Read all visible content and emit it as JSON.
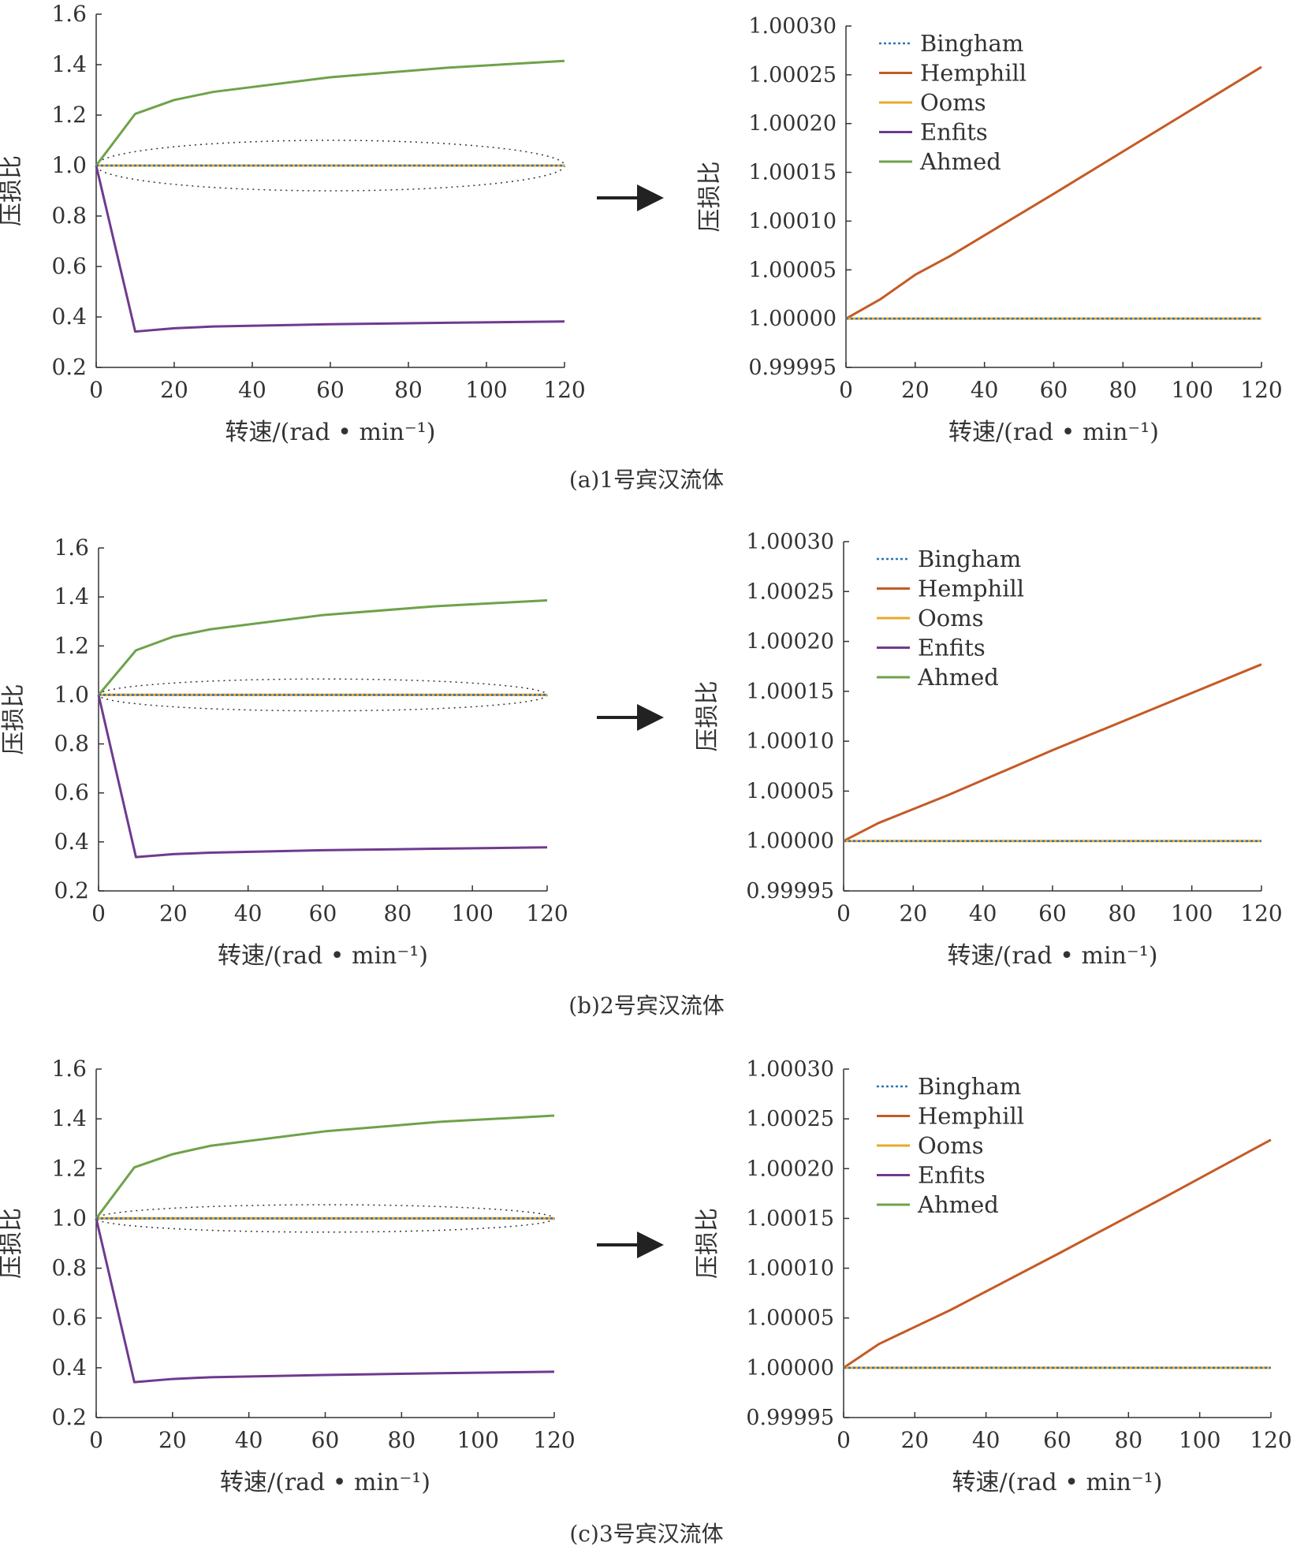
{
  "colors": {
    "Bingham": "#2e75b6",
    "Hemphill": "#c55a24",
    "Ooms": "#e8a92a",
    "Enfits": "#6f3a8f",
    "Ahmed": "#6fa24a",
    "axis": "#333333",
    "ellipse": "#333333"
  },
  "legend": [
    "Bingham",
    "Hemphill",
    "Ooms",
    "Enfits",
    "Ahmed"
  ],
  "arrow": "→",
  "chart_data": [
    {
      "id": "a-left",
      "type": "line",
      "xlabel": "转速/(rad • min⁻¹)",
      "ylabel": "压损比",
      "xticks": [
        "0",
        "20",
        "40",
        "60",
        "80",
        "100",
        "120"
      ],
      "xlim": [
        0,
        120
      ],
      "yticks": [
        "0.2",
        "0.4",
        "0.6",
        "0.8",
        "1.0",
        "1.2",
        "1.4",
        "1.6"
      ],
      "ylim": [
        0.2,
        1.6
      ],
      "ellipse": {
        "cx": 60,
        "cy": 1.0,
        "rx": 60,
        "ry": 0.1
      },
      "series": [
        {
          "name": "Ahmed",
          "x": [
            0,
            10,
            20,
            30,
            60,
            90,
            120
          ],
          "y": [
            1.0,
            1.205,
            1.26,
            1.292,
            1.35,
            1.388,
            1.415
          ]
        },
        {
          "name": "Enfits",
          "x": [
            0,
            10,
            20,
            30,
            60,
            90,
            120
          ],
          "y": [
            1.0,
            0.342,
            0.355,
            0.362,
            0.371,
            0.377,
            0.382
          ]
        },
        {
          "name": "Hemphill",
          "x": [
            0,
            120
          ],
          "y": [
            1.0,
            1.0
          ]
        },
        {
          "name": "Ooms",
          "x": [
            0,
            120
          ],
          "y": [
            1.0,
            1.0
          ]
        },
        {
          "name": "Bingham",
          "x": [
            0,
            120
          ],
          "y": [
            1.0,
            1.0
          ]
        }
      ]
    },
    {
      "id": "a-right",
      "type": "line",
      "xlabel": "转速/(rad • min⁻¹)",
      "ylabel": "压损比",
      "xticks": [
        "0",
        "20",
        "40",
        "60",
        "80",
        "100",
        "120"
      ],
      "xlim": [
        0,
        120
      ],
      "yticks": [
        "0.99995",
        "1.00000",
        "1.00005",
        "1.00010",
        "1.00015",
        "1.00020",
        "1.00025",
        "1.00030"
      ],
      "ylim": [
        0.99995,
        1.0003
      ],
      "series": [
        {
          "name": "Hemphill",
          "x": [
            0,
            10,
            20,
            30,
            60,
            90,
            120
          ],
          "y": [
            1.0,
            1.00002,
            1.000045,
            1.000064,
            1.000128,
            1.000193,
            1.000258
          ]
        },
        {
          "name": "Ooms",
          "x": [
            0,
            120
          ],
          "y": [
            1.0,
            1.0
          ]
        },
        {
          "name": "Bingham",
          "x": [
            0,
            120
          ],
          "y": [
            1.0,
            1.0
          ]
        }
      ]
    },
    {
      "id": "b-left",
      "type": "line",
      "xlabel": "转速/(rad • min⁻¹)",
      "ylabel": "压损比",
      "xticks": [
        "0",
        "20",
        "40",
        "60",
        "80",
        "100",
        "120"
      ],
      "xlim": [
        0,
        120
      ],
      "yticks": [
        "0.2",
        "0.4",
        "0.6",
        "0.8",
        "1.0",
        "1.2",
        "1.4",
        "1.6"
      ],
      "ylim": [
        0.2,
        1.6
      ],
      "ellipse": {
        "cx": 60,
        "cy": 1.0,
        "rx": 60,
        "ry": 0.065
      },
      "series": [
        {
          "name": "Ahmed",
          "x": [
            0,
            10,
            20,
            30,
            60,
            90,
            120
          ],
          "y": [
            1.0,
            1.182,
            1.238,
            1.268,
            1.326,
            1.362,
            1.386
          ]
        },
        {
          "name": "Enfits",
          "x": [
            0,
            10,
            20,
            30,
            60,
            90,
            120
          ],
          "y": [
            1.0,
            0.338,
            0.35,
            0.356,
            0.366,
            0.372,
            0.378
          ]
        },
        {
          "name": "Hemphill",
          "x": [
            0,
            120
          ],
          "y": [
            1.0,
            1.0
          ]
        },
        {
          "name": "Ooms",
          "x": [
            0,
            120
          ],
          "y": [
            1.0,
            1.0
          ]
        },
        {
          "name": "Bingham",
          "x": [
            0,
            120
          ],
          "y": [
            1.0,
            1.0
          ]
        }
      ]
    },
    {
      "id": "b-right",
      "type": "line",
      "xlabel": "转速/(rad • min⁻¹)",
      "ylabel": "压损比",
      "xticks": [
        "0",
        "20",
        "40",
        "60",
        "80",
        "100",
        "120"
      ],
      "xlim": [
        0,
        120
      ],
      "yticks": [
        "0.99995",
        "1.00000",
        "1.00005",
        "1.00010",
        "1.00015",
        "1.00020",
        "1.00025",
        "1.00030"
      ],
      "ylim": [
        0.99995,
        1.0003
      ],
      "series": [
        {
          "name": "Hemphill",
          "x": [
            0,
            10,
            20,
            30,
            60,
            90,
            120
          ],
          "y": [
            1.0,
            1.000018,
            1.000032,
            1.000046,
            1.000091,
            1.000134,
            1.000177
          ]
        },
        {
          "name": "Ooms",
          "x": [
            0,
            120
          ],
          "y": [
            1.0,
            1.0
          ]
        },
        {
          "name": "Bingham",
          "x": [
            0,
            120
          ],
          "y": [
            1.0,
            1.0
          ]
        }
      ]
    },
    {
      "id": "c-left",
      "type": "line",
      "xlabel": "转速/(rad • min⁻¹)",
      "ylabel": "压损比",
      "xticks": [
        "0",
        "20",
        "40",
        "60",
        "80",
        "100",
        "120"
      ],
      "xlim": [
        0,
        120
      ],
      "yticks": [
        "0.2",
        "0.4",
        "0.6",
        "0.8",
        "1.0",
        "1.2",
        "1.4",
        "1.6"
      ],
      "ylim": [
        0.2,
        1.6
      ],
      "ellipse": {
        "cx": 60,
        "cy": 1.0,
        "rx": 60,
        "ry": 0.055
      },
      "series": [
        {
          "name": "Ahmed",
          "x": [
            0,
            10,
            20,
            30,
            60,
            90,
            120
          ],
          "y": [
            1.0,
            1.205,
            1.258,
            1.292,
            1.35,
            1.388,
            1.413
          ]
        },
        {
          "name": "Enfits",
          "x": [
            0,
            10,
            20,
            30,
            60,
            90,
            120
          ],
          "y": [
            1.0,
            0.342,
            0.355,
            0.362,
            0.371,
            0.378,
            0.384
          ]
        },
        {
          "name": "Hemphill",
          "x": [
            0,
            120
          ],
          "y": [
            1.0,
            1.0
          ]
        },
        {
          "name": "Ooms",
          "x": [
            0,
            120
          ],
          "y": [
            1.0,
            1.0
          ]
        },
        {
          "name": "Bingham",
          "x": [
            0,
            120
          ],
          "y": [
            1.0,
            1.0
          ]
        }
      ]
    },
    {
      "id": "c-right",
      "type": "line",
      "xlabel": "转速/(rad • min⁻¹)",
      "ylabel": "压损比",
      "xticks": [
        "0",
        "20",
        "40",
        "60",
        "80",
        "100",
        "120"
      ],
      "xlim": [
        0,
        120
      ],
      "yticks": [
        "0.99995",
        "1.00000",
        "1.00005",
        "1.00010",
        "1.00015",
        "1.00020",
        "1.00025",
        "1.00030"
      ],
      "ylim": [
        0.99995,
        1.0003
      ],
      "series": [
        {
          "name": "Hemphill",
          "x": [
            0,
            10,
            20,
            30,
            60,
            90,
            120
          ],
          "y": [
            1.0,
            1.000024,
            1.000041,
            1.000058,
            1.000114,
            1.000171,
            1.000229
          ]
        },
        {
          "name": "Ooms",
          "x": [
            0,
            120
          ],
          "y": [
            1.0,
            1.0
          ]
        },
        {
          "name": "Bingham",
          "x": [
            0,
            120
          ],
          "y": [
            1.0,
            1.0
          ]
        }
      ]
    }
  ],
  "captions": [
    "(a)1号宾汉流体",
    "(b)2号宾汉流体",
    "(c)3号宾汉流体"
  ]
}
